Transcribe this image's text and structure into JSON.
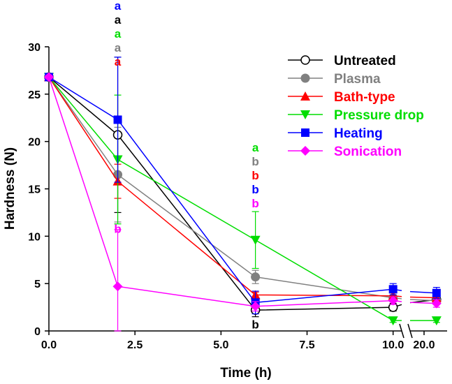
{
  "chart_data": {
    "type": "line",
    "xlabel": "Time (h)",
    "ylabel": "Hardness (N)",
    "ylim": [
      0,
      30
    ],
    "yticks": [
      "0",
      "5",
      "10",
      "15",
      "20",
      "25",
      "30"
    ],
    "xticks_main": [
      "0.0",
      "2.5",
      "5.0",
      "7.5",
      "10.0"
    ],
    "xticks_break": [
      "20.0"
    ],
    "xlim_main": [
      0,
      10.25
    ],
    "xlim_break": [
      19.5,
      23
    ],
    "x": [
      0,
      2,
      6,
      10,
      22
    ],
    "legend_position": "top-right",
    "series": [
      {
        "name": "Untreated",
        "color": "#000000",
        "marker": "circle-open",
        "values": [
          26.8,
          20.7,
          2.2,
          2.5,
          3.3
        ],
        "errors": [
          0.2,
          8.2,
          0.7,
          0.4,
          0.4
        ]
      },
      {
        "name": "Plasma",
        "color": "#808080",
        "marker": "circle-filled",
        "values": [
          26.8,
          16.5,
          5.7,
          3.5,
          3.2
        ],
        "errors": [
          0.2,
          5.0,
          0.7,
          0.3,
          0.3
        ]
      },
      {
        "name": "Bath-type",
        "color": "#ff0000",
        "marker": "triangle-up",
        "values": [
          26.8,
          15.8,
          3.8,
          3.7,
          3.5
        ],
        "errors": [
          0.2,
          1.8,
          0.3,
          0.3,
          0.3
        ]
      },
      {
        "name": "Pressure drop",
        "color": "#00dd00",
        "marker": "triangle-down",
        "values": [
          26.8,
          18.1,
          9.6,
          1.1,
          1.1
        ],
        "errors": [
          0.2,
          6.8,
          3.0,
          0.2,
          0.2
        ]
      },
      {
        "name": "Heating",
        "color": "#0000ff",
        "marker": "square",
        "values": [
          26.8,
          22.3,
          3.0,
          4.4,
          4.0
        ],
        "errors": [
          0.2,
          6.6,
          1.2,
          0.6,
          0.6
        ]
      },
      {
        "name": "Sonication",
        "color": "#ff00ff",
        "marker": "diamond",
        "values": [
          26.8,
          4.7,
          2.6,
          3.2,
          2.9
        ],
        "errors": [
          0.2,
          6.0,
          0.5,
          0.4,
          0.4
        ]
      }
    ],
    "annotations": [
      {
        "x": 2,
        "stack": [
          {
            "text": "a",
            "color": "#0000ff"
          },
          {
            "text": "a",
            "color": "#000000"
          },
          {
            "text": "a",
            "color": "#00dd00"
          },
          {
            "text": "a",
            "color": "#808080"
          },
          {
            "text": "a",
            "color": "#ff0000"
          }
        ]
      },
      {
        "x": 2,
        "y": 10.8,
        "text": "b",
        "color": "#ff00ff"
      },
      {
        "x": 6,
        "stack": [
          {
            "text": "a",
            "color": "#00dd00"
          },
          {
            "text": "b",
            "color": "#808080"
          },
          {
            "text": "b",
            "color": "#ff0000"
          },
          {
            "text": "b",
            "color": "#0000ff"
          },
          {
            "text": "b",
            "color": "#ff00ff"
          }
        ]
      },
      {
        "x": 6,
        "y": 0.7,
        "text": "b",
        "color": "#000000"
      }
    ]
  }
}
